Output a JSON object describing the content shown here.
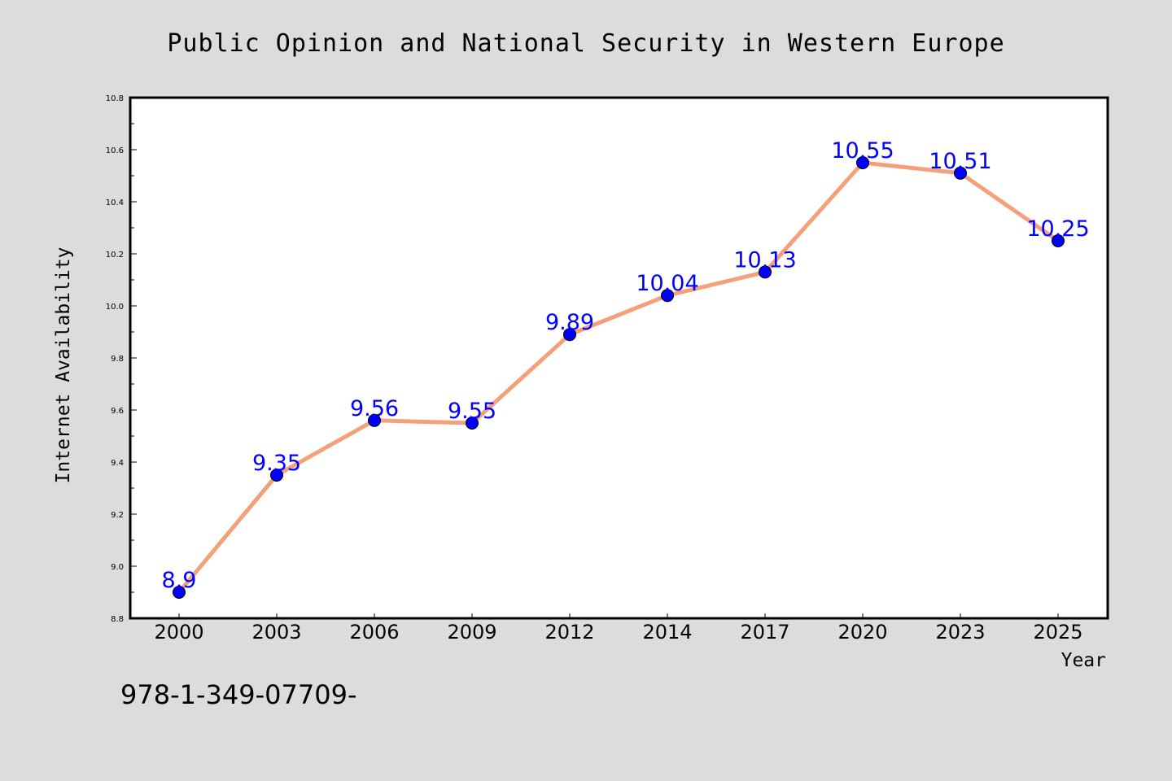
{
  "chart_data": {
    "type": "line",
    "title": "Public Opinion and National Security in Western Europe",
    "xlabel": "Year",
    "ylabel": "Internet Availability",
    "categories": [
      "2000",
      "2003",
      "2006",
      "2009",
      "2012",
      "2014",
      "2017",
      "2020",
      "2023",
      "2025"
    ],
    "series": [
      {
        "values": [
          8.9,
          9.35,
          9.56,
          9.55,
          9.89,
          10.04,
          10.13,
          10.55,
          10.51,
          10.25
        ],
        "labels": [
          "8.9",
          "9.35",
          "9.56",
          "9.55",
          "9.89",
          "10.04",
          "10.13",
          "10.55",
          "10.51",
          "10.25"
        ]
      }
    ],
    "ylim": [
      8.8,
      10.8
    ],
    "yticks": [
      "8.8",
      "9.0",
      "9.2",
      "9.4",
      "9.6",
      "9.8",
      "10.0",
      "10.2",
      "10.4",
      "10.6",
      "10.8"
    ],
    "grid": false,
    "legend": "none",
    "colors": {
      "line": "#f4a07a",
      "marker": "#0000ff",
      "label": "#0000ff",
      "plot_bg": "#ffffff",
      "page_bg": "#dcdcdc"
    }
  },
  "footnote": "978-1-349-07709-"
}
